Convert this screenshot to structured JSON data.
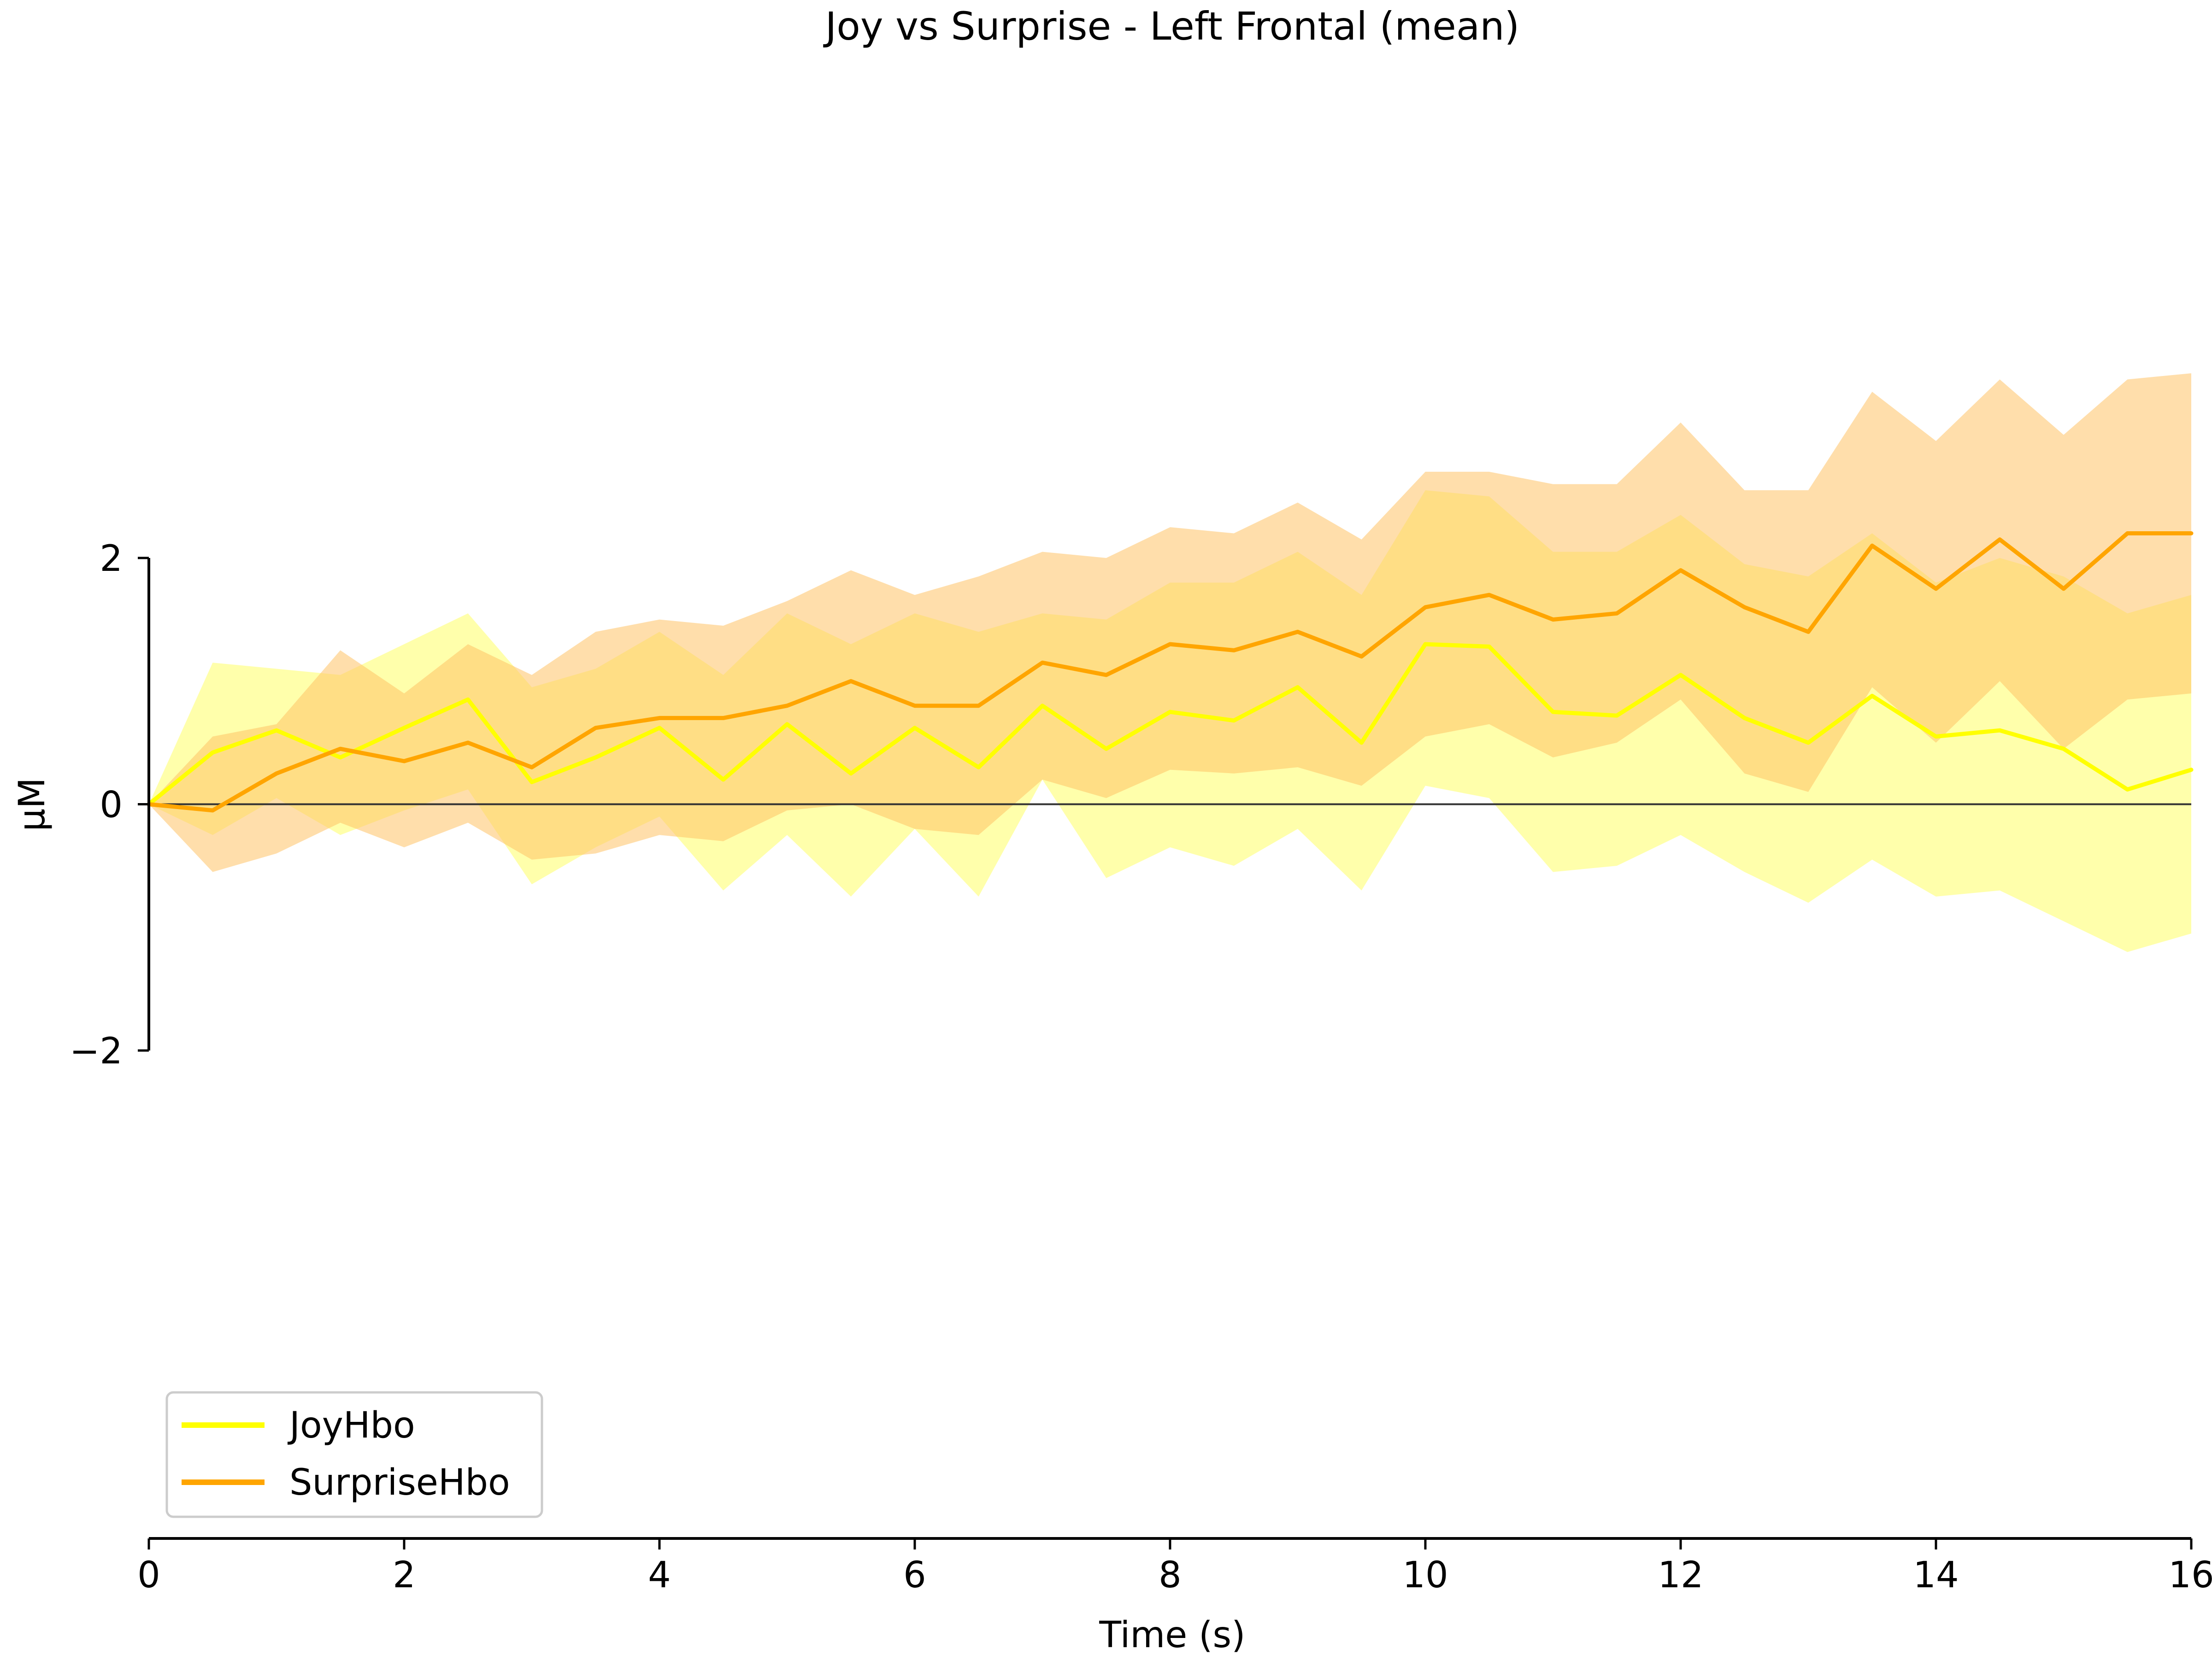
{
  "chart_data": {
    "type": "line",
    "title": "Joy vs Surprise - Left Frontal (mean)",
    "xlabel": "Time (s)",
    "ylabel": "µM",
    "xlim": [
      0,
      16
    ],
    "ylim": [
      -2,
      2
    ],
    "xticks": [
      "0",
      "2",
      "4",
      "6",
      "8",
      "10",
      "12",
      "14",
      "16"
    ],
    "yticks": [
      "−2",
      "0",
      "2"
    ],
    "legend_position": "lower-left",
    "zero_line": true,
    "series": [
      {
        "name": "JoyHbo",
        "color": "#ffff00",
        "band_color": "#ffff66",
        "x": [
          0.0,
          0.5,
          1.0,
          1.5,
          2.0,
          2.5,
          3.0,
          3.5,
          4.0,
          4.5,
          5.0,
          5.5,
          6.0,
          6.5,
          7.0,
          7.5,
          8.0,
          8.5,
          9.0,
          9.5,
          10.0,
          10.5,
          11.0,
          11.5,
          12.0,
          12.5,
          13.0,
          13.5,
          14.0,
          14.5,
          15.0,
          15.5,
          16.0
        ],
        "values": [
          0.0,
          0.42,
          0.6,
          0.38,
          0.62,
          0.85,
          0.18,
          0.38,
          0.62,
          0.2,
          0.65,
          0.25,
          0.62,
          0.3,
          0.8,
          0.45,
          0.75,
          0.68,
          0.95,
          0.5,
          1.3,
          1.28,
          0.75,
          0.72,
          1.05,
          0.7,
          0.5,
          0.88,
          0.55,
          0.6,
          0.45,
          0.12,
          0.28
        ],
        "lower": [
          0.0,
          -0.25,
          0.05,
          -0.25,
          -0.05,
          0.12,
          -0.65,
          -0.35,
          -0.1,
          -0.7,
          -0.25,
          -0.75,
          -0.2,
          -0.75,
          0.2,
          -0.6,
          -0.35,
          -0.5,
          -0.2,
          -0.7,
          0.15,
          0.05,
          -0.55,
          -0.5,
          -0.25,
          -0.55,
          -0.8,
          -0.45,
          -0.75,
          -0.7,
          -0.95,
          -1.2,
          -1.05
        ],
        "upper": [
          0.0,
          1.15,
          1.1,
          1.05,
          1.3,
          1.55,
          0.95,
          1.1,
          1.4,
          1.05,
          1.55,
          1.3,
          1.55,
          1.4,
          1.55,
          1.5,
          1.8,
          1.8,
          2.05,
          1.7,
          2.55,
          2.5,
          2.05,
          2.05,
          2.35,
          1.95,
          1.85,
          2.2,
          1.8,
          2.0,
          1.85,
          1.55,
          1.7
        ]
      },
      {
        "name": "SurpriseHbo",
        "color": "#ffa500",
        "band_color": "#ffc266",
        "x": [
          0.0,
          0.5,
          1.0,
          1.5,
          2.0,
          2.5,
          3.0,
          3.5,
          4.0,
          4.5,
          5.0,
          5.5,
          6.0,
          6.5,
          7.0,
          7.5,
          8.0,
          8.5,
          9.0,
          9.5,
          10.0,
          10.5,
          11.0,
          11.5,
          12.0,
          12.5,
          13.0,
          13.5,
          14.0,
          14.5,
          15.0,
          15.5,
          16.0
        ],
        "values": [
          0.0,
          -0.05,
          0.25,
          0.45,
          0.35,
          0.5,
          0.3,
          0.62,
          0.7,
          0.7,
          0.8,
          1.0,
          0.8,
          0.8,
          1.15,
          1.05,
          1.3,
          1.25,
          1.4,
          1.2,
          1.6,
          1.7,
          1.5,
          1.55,
          1.9,
          1.6,
          1.4,
          2.1,
          1.75,
          2.15,
          1.75,
          2.2,
          2.2
        ],
        "lower": [
          0.0,
          -0.55,
          -0.4,
          -0.15,
          -0.35,
          -0.15,
          -0.45,
          -0.4,
          -0.25,
          -0.3,
          -0.05,
          0.0,
          -0.2,
          -0.25,
          0.2,
          0.05,
          0.28,
          0.25,
          0.3,
          0.15,
          0.55,
          0.65,
          0.38,
          0.5,
          0.85,
          0.25,
          0.1,
          0.95,
          0.5,
          1.0,
          0.45,
          0.85,
          0.9
        ],
        "upper": [
          0.0,
          0.55,
          0.65,
          1.25,
          0.9,
          1.3,
          1.05,
          1.4,
          1.5,
          1.45,
          1.65,
          1.9,
          1.7,
          1.85,
          2.05,
          2.0,
          2.25,
          2.2,
          2.45,
          2.15,
          2.7,
          2.7,
          2.6,
          2.6,
          3.1,
          2.55,
          2.55,
          3.35,
          2.95,
          3.45,
          3.0,
          3.45,
          3.5
        ]
      }
    ]
  }
}
